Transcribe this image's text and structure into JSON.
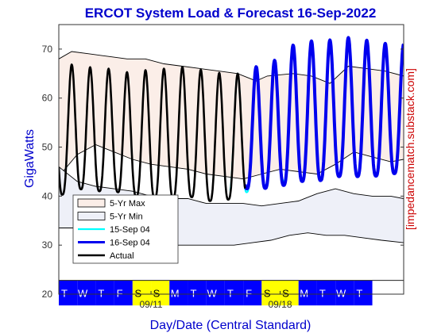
{
  "chart_data": {
    "type": "line",
    "title": "ERCOT System Load & Forecast 16-Sep-2022",
    "xlabel": "Day/Date (Central Standard)",
    "ylabel": "GigaWatts",
    "credit": "[impedancematch.substack.com]",
    "ylim": [
      20,
      75
    ],
    "xlim": [
      0,
      18.7
    ],
    "yticks": [
      20,
      30,
      40,
      50,
      60,
      70
    ],
    "x_unit": "days since Tue 06-Sep-2022 00:00",
    "date_ticks": [
      {
        "x": 5,
        "label": "09/11"
      },
      {
        "x": 12,
        "label": "09/18"
      }
    ],
    "day_labels": [
      "T",
      "W",
      "T",
      "F",
      "S",
      "S",
      "M",
      "T",
      "W",
      "T",
      "F",
      "S",
      "S",
      "M",
      "T",
      "W",
      "T"
    ],
    "weekend_days": [
      4,
      5,
      11,
      12
    ],
    "colors": {
      "band_max_fill": "#fbeee8",
      "band_min_fill": "#eef0f8",
      "band_edge": "#000000",
      "forecast_15": "#00ffff",
      "forecast_16": "#0000ee",
      "actual": "#000000",
      "weekday_bar": "#0000ff",
      "weekend_bar": "#ffff00",
      "title": "#0000cc",
      "axis_label": "#0000cc",
      "credit": "#cc0000"
    },
    "series": [
      {
        "name": "5-Yr Max",
        "kind": "band",
        "upper": [
          [
            0,
            68
          ],
          [
            0.7,
            69.5
          ],
          [
            1.7,
            69
          ],
          [
            2.7,
            68.5
          ],
          [
            3.7,
            68
          ],
          [
            4.7,
            68
          ],
          [
            5.7,
            67
          ],
          [
            6.7,
            66.5
          ],
          [
            7.7,
            66
          ],
          [
            8.7,
            65.5
          ],
          [
            9.7,
            65
          ],
          [
            10.7,
            63.5
          ],
          [
            11.3,
            64.5
          ],
          [
            12.7,
            65
          ],
          [
            13.7,
            64.5
          ],
          [
            14.7,
            63
          ],
          [
            15.7,
            66.5
          ],
          [
            16.7,
            66
          ],
          [
            17.7,
            65.5
          ],
          [
            18.7,
            64.5
          ]
        ],
        "lower": [
          [
            0,
            44
          ],
          [
            1,
            48.5
          ],
          [
            2,
            50.5
          ],
          [
            3,
            49
          ],
          [
            4,
            47.5
          ],
          [
            5,
            46.5
          ],
          [
            6,
            46
          ],
          [
            7,
            45.5
          ],
          [
            8,
            44.5
          ],
          [
            9,
            44
          ],
          [
            10,
            43.5
          ],
          [
            11,
            44.5
          ],
          [
            12,
            45.5
          ],
          [
            13,
            45
          ],
          [
            14,
            44.5
          ],
          [
            15,
            46.5
          ],
          [
            16,
            49
          ],
          [
            17,
            48
          ],
          [
            18,
            47
          ],
          [
            18.7,
            47.5
          ]
        ]
      },
      {
        "name": "5-Yr Min",
        "kind": "band",
        "upper": [
          [
            0,
            46
          ],
          [
            1,
            43
          ],
          [
            2,
            42
          ],
          [
            3,
            41.5
          ],
          [
            4,
            41
          ],
          [
            5,
            40
          ],
          [
            6,
            39.5
          ],
          [
            7,
            39.5
          ],
          [
            8,
            38.5
          ],
          [
            9,
            38.5
          ],
          [
            10,
            38.5
          ],
          [
            11,
            38
          ],
          [
            12,
            38.5
          ],
          [
            13,
            39
          ],
          [
            14,
            40.5
          ],
          [
            15,
            41.5
          ],
          [
            16,
            40.5
          ],
          [
            17,
            40
          ],
          [
            18,
            40
          ],
          [
            18.7,
            39.5
          ]
        ],
        "lower": [
          [
            0,
            33.5
          ],
          [
            0.8,
            33.5
          ],
          [
            1.5,
            30.5
          ],
          [
            2.5,
            30.5
          ],
          [
            3.5,
            30
          ],
          [
            4.5,
            29.5
          ],
          [
            5.5,
            29.5
          ],
          [
            6.5,
            30
          ],
          [
            7.5,
            30
          ],
          [
            8.5,
            30
          ],
          [
            9.5,
            30
          ],
          [
            10.5,
            30.5
          ],
          [
            11.5,
            31
          ],
          [
            12.5,
            32
          ],
          [
            13.5,
            32.5
          ],
          [
            14.5,
            32
          ],
          [
            15.5,
            32
          ],
          [
            16.5,
            31.5
          ],
          [
            17.5,
            31
          ],
          [
            18.7,
            30.5
          ]
        ]
      },
      {
        "name": "15-Sep 04",
        "kind": "line",
        "segment": [
          9.3,
          15.3
        ],
        "peak_x": 9.7,
        "troughs": [
          [
            9,
            40
          ],
          [
            10,
            40.5
          ],
          [
            11,
            42
          ],
          [
            12,
            43
          ],
          [
            13,
            43.5
          ],
          [
            14,
            43
          ],
          [
            15,
            44
          ]
        ],
        "peaks": [
          [
            9,
            65
          ],
          [
            10,
            65
          ],
          [
            11,
            67
          ],
          [
            12,
            68
          ],
          [
            13,
            71
          ],
          [
            14,
            71
          ],
          [
            15,
            71.5
          ]
        ]
      },
      {
        "name": "16-Sep 04",
        "kind": "line",
        "segment": [
          10.1,
          18.7
        ],
        "peak_x": 9.7,
        "troughs": [
          [
            10,
            41.5
          ],
          [
            11,
            41.5
          ],
          [
            12,
            42
          ],
          [
            13,
            43
          ],
          [
            14,
            43
          ],
          [
            15,
            44
          ],
          [
            16,
            44
          ],
          [
            17,
            44
          ],
          [
            18,
            44.5
          ],
          [
            19,
            45
          ]
        ],
        "peaks": [
          [
            10,
            65
          ],
          [
            11,
            67
          ],
          [
            12,
            68
          ],
          [
            13,
            72
          ],
          [
            14,
            71.5
          ],
          [
            15,
            72
          ],
          [
            16,
            72.5
          ],
          [
            17,
            71.5
          ],
          [
            18,
            71
          ],
          [
            19,
            71
          ]
        ]
      },
      {
        "name": "Actual",
        "kind": "line",
        "segment": [
          0,
          10.1
        ],
        "peak_x": 0.7,
        "troughs": [
          [
            0,
            40
          ],
          [
            1,
            41.5
          ],
          [
            2,
            41
          ],
          [
            3,
            41
          ],
          [
            4,
            40
          ],
          [
            5,
            39.5
          ],
          [
            6,
            39.5
          ],
          [
            7,
            40
          ],
          [
            8,
            39
          ],
          [
            9,
            39
          ],
          [
            10,
            40.5
          ],
          [
            11,
            42
          ]
        ],
        "peaks": [
          [
            0,
            66.5
          ],
          [
            1,
            67
          ],
          [
            2,
            66
          ],
          [
            3,
            66
          ],
          [
            4,
            65
          ],
          [
            5,
            66
          ],
          [
            6,
            66
          ],
          [
            7,
            66.5
          ],
          [
            8,
            65.5
          ],
          [
            9,
            65
          ],
          [
            10,
            65
          ]
        ]
      }
    ],
    "legend": {
      "placement": "lower-left",
      "entries": [
        "5-Yr Max",
        "5-Yr Min",
        "15-Sep 04",
        "16-Sep 04",
        "Actual"
      ]
    }
  }
}
